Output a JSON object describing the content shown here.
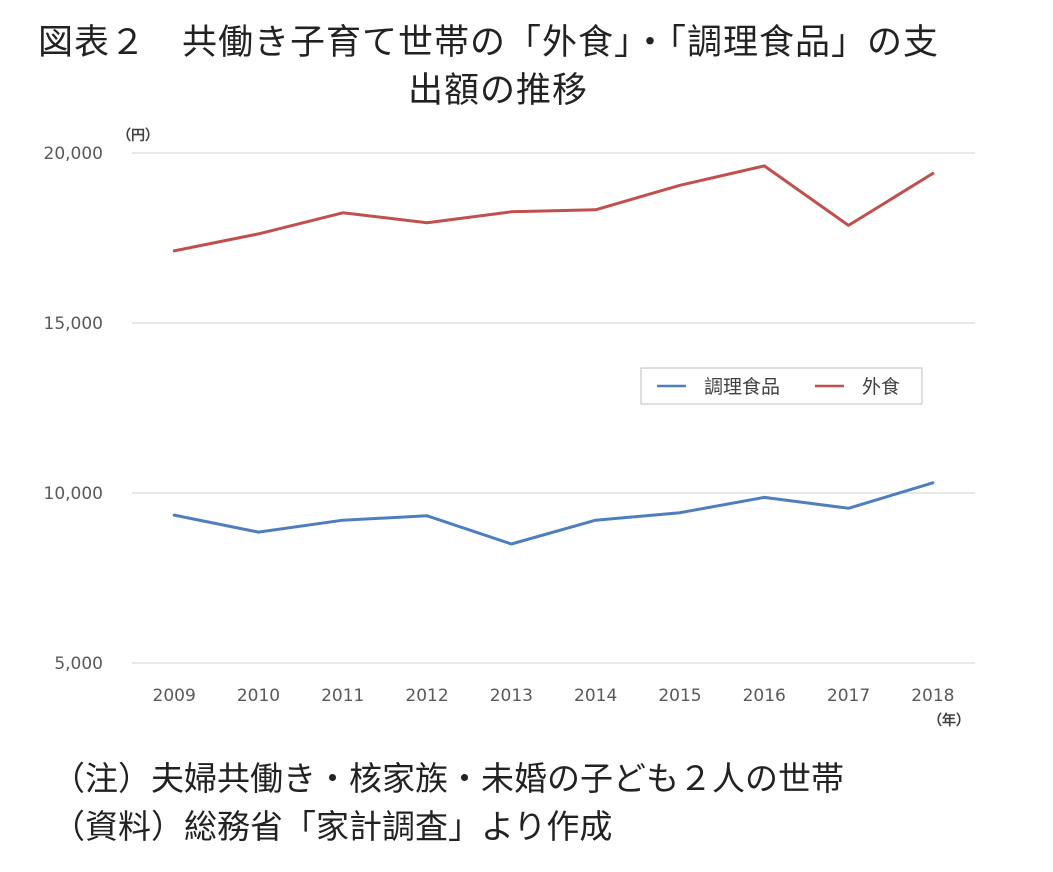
{
  "figure": {
    "title_line1": "図表２　共働き子育て世帯の「外食」・「調理食品」の支",
    "title_line2": "出額の推移",
    "note": "（注）夫婦共働き・核家族・未婚の子ども２人の世帯",
    "source": "（資料）総務省「家計調査」より作成"
  },
  "colors": {
    "series_prepared_food": "#4f7ebf",
    "series_eating_out": "#c0504d",
    "grid": "#d9d9d9",
    "axis_text": "#595959"
  },
  "chart_data": {
    "type": "line",
    "y_unit_label": "（円）",
    "x_unit_label": "（年）",
    "categories": [
      "2009",
      "2010",
      "2011",
      "2012",
      "2013",
      "2014",
      "2015",
      "2016",
      "2017",
      "2018"
    ],
    "ylim": [
      5000,
      20000
    ],
    "yticks": [
      5000,
      10000,
      15000,
      20000
    ],
    "ytick_labels": [
      "5,000",
      "10,000",
      "15,000",
      "20,000"
    ],
    "grid": true,
    "legend_position": "right, middle",
    "series": [
      {
        "name": "調理食品",
        "values": [
          9350,
          8850,
          9200,
          9330,
          8500,
          9200,
          9420,
          9870,
          9550,
          10300
        ]
      },
      {
        "name": "外食",
        "values": [
          17120,
          17620,
          18240,
          17950,
          18270,
          18330,
          19050,
          19620,
          17870,
          19400
        ]
      }
    ]
  }
}
